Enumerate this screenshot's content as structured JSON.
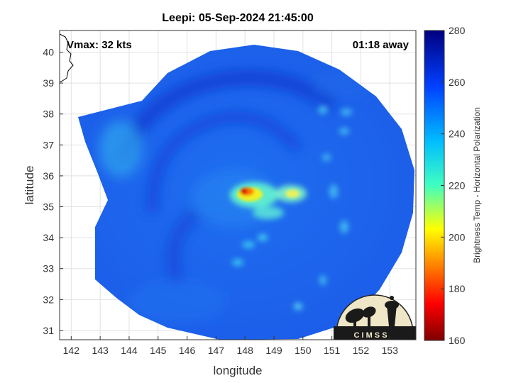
{
  "title": "Leepi: 05-Sep-2024 21:45:00",
  "vmax_text": "Vmax: 32 kts",
  "away_text": "01:18 away",
  "xlabel": "longitude",
  "ylabel": "latitude",
  "x_ticks": [
    "142",
    "143",
    "144",
    "145",
    "146",
    "147",
    "148",
    "149",
    "150",
    "151",
    "152",
    "153"
  ],
  "y_ticks": [
    "31",
    "32",
    "33",
    "34",
    "35",
    "36",
    "37",
    "38",
    "39",
    "40"
  ],
  "colorbar": {
    "label": "Brightness Temp - Horizontal Polarization",
    "ticks": [
      "160",
      "180",
      "200",
      "220",
      "240",
      "260",
      "280"
    ],
    "range": [
      160,
      280
    ],
    "colormap": "jet"
  },
  "logo": {
    "text": "C I M S S"
  },
  "chart_data": {
    "type": "heatmap",
    "title": "Leepi: 05-Sep-2024 21:45:00",
    "xlabel": "longitude",
    "ylabel": "latitude",
    "xlim": [
      141.6,
      153.9
    ],
    "ylim": [
      30.7,
      40.7
    ],
    "color_range": [
      160,
      280
    ],
    "color_label": "Brightness Temp - Horizontal Polarization",
    "grid": true,
    "storm_center": {
      "lon": 147.9,
      "lat": 35.4
    },
    "annotations": [
      "Vmax: 32 kts",
      "01:18 away"
    ]
  }
}
